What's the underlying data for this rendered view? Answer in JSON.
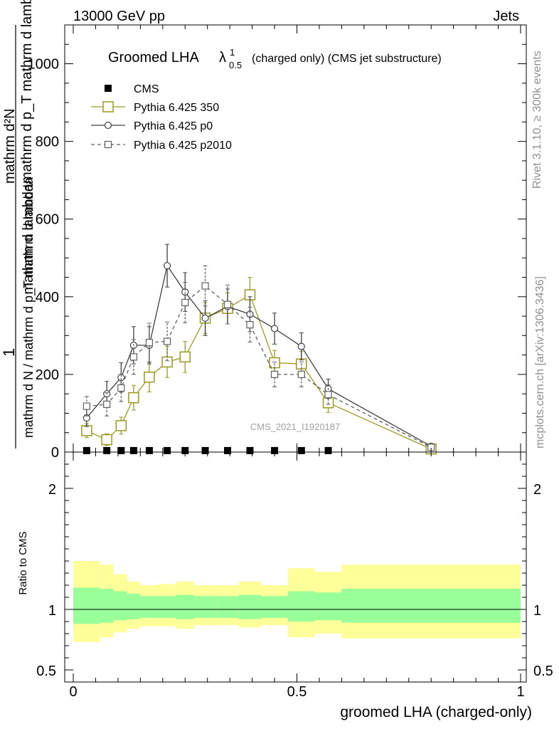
{
  "header": {
    "left": "13000 GeV pp",
    "right": "Jets"
  },
  "side_labels": {
    "rivet": "Rivet 3.1.10, ≥ 300k events",
    "mcplots": "mcplots.cern.ch [arXiv:1306.3436]"
  },
  "watermark": "CMS_2021_I1920187",
  "colors": {
    "cms": "#000000",
    "p350": "#9a9a20",
    "p0": "#404040",
    "p2010": "#606060",
    "band_inner": "#99ff99",
    "band_outer": "#ffff99"
  },
  "chart_data": [
    {
      "type": "line",
      "title_main": "Groomed LHA",
      "title_lambda": "λ",
      "title_sup": "1",
      "title_sub": "0.5",
      "title_rest": "(charged only) (CMS jet substructure)",
      "ylabel_num": "1",
      "ylabel_den": "mathrm d N / mathrm d p_T mathrm d lambda",
      "ylabel_frac_top": "mathrm d²N",
      "ylabel_frac_bottom": "mathrm d p_T mathrm d lambda",
      "ylim": [
        0,
        1100
      ],
      "xlim": [
        0,
        1
      ],
      "yticks": [
        "0",
        "200",
        "400",
        "600",
        "800",
        "1000"
      ],
      "ytick_values": [
        0,
        200,
        400,
        600,
        800,
        1000
      ],
      "legend_position": "top-left",
      "legend": [
        "CMS",
        "Pythia 6.425 350",
        "Pythia 6.425 p0",
        "Pythia 6.425 p2010"
      ],
      "series": [
        {
          "name": "CMS",
          "x": [
            0.03,
            0.075,
            0.107,
            0.135,
            0.17,
            0.21,
            0.25,
            0.295,
            0.345,
            0.395,
            0.45,
            0.51,
            0.57
          ],
          "values": [
            2,
            2,
            2,
            2,
            2,
            2,
            2,
            2,
            2,
            2,
            2,
            2,
            2
          ]
        },
        {
          "name": "Pythia 6.425 350",
          "x": [
            0.03,
            0.075,
            0.107,
            0.135,
            0.17,
            0.21,
            0.25,
            0.295,
            0.345,
            0.395,
            0.45,
            0.51,
            0.57,
            0.8
          ],
          "values": [
            55,
            32,
            68,
            140,
            193,
            232,
            245,
            345,
            370,
            405,
            230,
            227,
            127,
            8
          ],
          "errors": [
            18,
            15,
            22,
            32,
            38,
            40,
            40,
            40,
            40,
            45,
            32,
            32,
            25,
            5
          ]
        },
        {
          "name": "Pythia 6.425 p0",
          "x": [
            0.03,
            0.075,
            0.107,
            0.135,
            0.17,
            0.21,
            0.25,
            0.295,
            0.345,
            0.395,
            0.45,
            0.51,
            0.57,
            0.8
          ],
          "values": [
            88,
            150,
            192,
            275,
            275,
            480,
            412,
            345,
            375,
            355,
            318,
            272,
            163,
            15
          ],
          "errors": [
            22,
            32,
            38,
            48,
            48,
            55,
            50,
            45,
            45,
            45,
            40,
            35,
            25,
            5
          ]
        },
        {
          "name": "Pythia 6.425 p2010",
          "x": [
            0.03,
            0.075,
            0.107,
            0.135,
            0.17,
            0.21,
            0.25,
            0.295,
            0.345,
            0.395,
            0.45,
            0.51,
            0.57,
            0.8
          ],
          "values": [
            118,
            123,
            165,
            245,
            282,
            285,
            385,
            428,
            380,
            328,
            200,
            200,
            148,
            12
          ],
          "errors": [
            25,
            30,
            35,
            45,
            50,
            50,
            52,
            52,
            50,
            45,
            32,
            32,
            25,
            5
          ]
        }
      ]
    },
    {
      "type": "area",
      "ylabel": "Ratio to CMS",
      "ylim": [
        0.4,
        2.3
      ],
      "xlim": [
        0,
        1
      ],
      "xlabel": "groomed LHA (charged-only)",
      "xticks": [
        "0",
        "0.5",
        "1"
      ],
      "xtick_values": [
        0,
        0.5,
        1
      ],
      "yticks": [
        "0.5",
        "1",
        "2"
      ],
      "ytick_values": [
        0.5,
        1,
        2
      ],
      "bin_edges": [
        0.0,
        0.06,
        0.09,
        0.12,
        0.15,
        0.19,
        0.23,
        0.27,
        0.32,
        0.37,
        0.42,
        0.48,
        0.54,
        0.6,
        1.0
      ],
      "band_inner_low": [
        0.88,
        0.89,
        0.91,
        0.92,
        0.93,
        0.93,
        0.92,
        0.93,
        0.93,
        0.92,
        0.93,
        0.9,
        0.91,
        0.89
      ],
      "band_inner_high": [
        1.18,
        1.17,
        1.15,
        1.13,
        1.11,
        1.11,
        1.12,
        1.11,
        1.11,
        1.12,
        1.11,
        1.15,
        1.14,
        1.17
      ],
      "band_outer_low": [
        0.73,
        0.77,
        0.81,
        0.84,
        0.86,
        0.86,
        0.84,
        0.87,
        0.87,
        0.85,
        0.87,
        0.77,
        0.8,
        0.76
      ],
      "band_outer_high": [
        1.4,
        1.37,
        1.29,
        1.23,
        1.2,
        1.21,
        1.23,
        1.2,
        1.2,
        1.23,
        1.2,
        1.34,
        1.31,
        1.37
      ]
    }
  ]
}
